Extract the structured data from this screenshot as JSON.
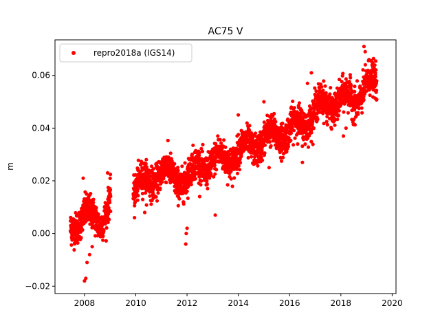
{
  "chart_data": {
    "type": "scatter",
    "title": "AC75 V",
    "xlabel": "",
    "ylabel": "m",
    "xlim": [
      2006.85,
      2020.15
    ],
    "ylim": [
      -0.0228,
      0.0735
    ],
    "x_ticks": [
      2008,
      2010,
      2012,
      2014,
      2016,
      2018,
      2020
    ],
    "x_tick_labels": [
      "2008",
      "2010",
      "2012",
      "2014",
      "2016",
      "2018",
      "2020"
    ],
    "y_ticks": [
      -0.02,
      0.0,
      0.02,
      0.04,
      0.06
    ],
    "y_tick_labels": [
      "−0.02",
      "0.00",
      "0.02",
      "0.04",
      "0.06"
    ],
    "grid": false,
    "legend_position": "upper-left",
    "series": [
      {
        "name": "repro2018a (IGS14)",
        "color": "#ff0000",
        "marker": "circle",
        "trend_x": [
          2007.45,
          2007.7,
          2008.0,
          2008.3,
          2008.6,
          2009.0,
          2010.0,
          2010.5,
          2011.0,
          2011.5,
          2012.0,
          2012.5,
          2013.0,
          2013.5,
          2014.0,
          2014.5,
          2015.0,
          2015.5,
          2016.0,
          2016.5,
          2017.0,
          2017.5,
          2018.0,
          2018.5,
          2019.0,
          2019.4
        ],
        "trend_y": [
          0.001,
          0.005,
          0.008,
          0.005,
          0.004,
          0.014,
          0.017,
          0.02,
          0.024,
          0.021,
          0.021,
          0.026,
          0.027,
          0.028,
          0.031,
          0.033,
          0.036,
          0.037,
          0.04,
          0.041,
          0.048,
          0.048,
          0.052,
          0.049,
          0.058,
          0.055
        ],
        "noise_sd": 0.003,
        "gaps": [
          [
            2009.02,
            2009.9
          ]
        ],
        "n_points": 3000,
        "outliers": [
          {
            "x": 2008.0,
            "y": -0.018
          },
          {
            "x": 2008.05,
            "y": -0.017
          },
          {
            "x": 2008.1,
            "y": -0.011
          },
          {
            "x": 2008.2,
            "y": -0.008
          },
          {
            "x": 2008.3,
            "y": -0.005
          },
          {
            "x": 2007.95,
            "y": 0.021
          },
          {
            "x": 2008.9,
            "y": 0.023
          },
          {
            "x": 2009.95,
            "y": 0.006
          },
          {
            "x": 2010.35,
            "y": 0.008
          },
          {
            "x": 2011.95,
            "y": -0.004
          },
          {
            "x": 2011.97,
            "y": 0.0
          },
          {
            "x": 2012.0,
            "y": 0.002
          },
          {
            "x": 2013.1,
            "y": 0.007
          },
          {
            "x": 2013.2,
            "y": 0.037
          },
          {
            "x": 2014.0,
            "y": 0.045
          },
          {
            "x": 2015.0,
            "y": 0.05
          },
          {
            "x": 2015.2,
            "y": 0.025
          },
          {
            "x": 2016.5,
            "y": 0.027
          },
          {
            "x": 2016.7,
            "y": 0.057
          },
          {
            "x": 2016.85,
            "y": 0.061
          },
          {
            "x": 2018.1,
            "y": 0.037
          },
          {
            "x": 2018.2,
            "y": 0.04
          },
          {
            "x": 2018.9,
            "y": 0.071
          },
          {
            "x": 2018.95,
            "y": 0.069
          },
          {
            "x": 2019.1,
            "y": 0.066
          }
        ]
      }
    ]
  }
}
